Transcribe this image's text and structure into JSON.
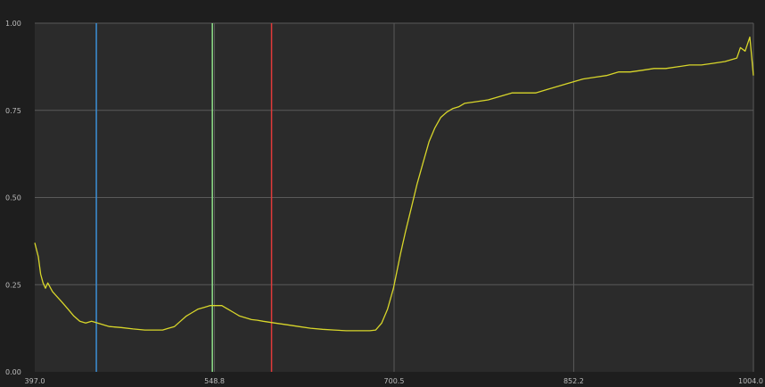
{
  "colors": {
    "background": "#1e1e1e",
    "plot_background": "#2b2b2b",
    "grid": "#5a5a5a",
    "series": "#d8d62a",
    "marker_blue": "#3b8fd6",
    "marker_green": "#8fe08a",
    "marker_red": "#e03a3a"
  },
  "chart_data": {
    "type": "line",
    "title": "",
    "xlabel": "",
    "ylabel": "",
    "xlim": [
      397.0,
      1004.0
    ],
    "ylim": [
      0.0,
      1.0
    ],
    "grid": true,
    "x_ticks": [
      "397.0",
      "548.8",
      "700.5",
      "852.2",
      "1004.0"
    ],
    "x_tick_values": [
      397.0,
      548.8,
      700.5,
      852.2,
      1004.0
    ],
    "y_ticks": [
      "0.00",
      "0.25",
      "0.50",
      "0.75",
      "1.00"
    ],
    "y_tick_values": [
      0.0,
      0.25,
      0.5,
      0.75,
      1.0
    ],
    "markers": [
      {
        "x": 449,
        "color_key": "marker_blue"
      },
      {
        "x": 547,
        "color_key": "marker_green"
      },
      {
        "x": 597,
        "color_key": "marker_red"
      }
    ],
    "series": [
      {
        "x": [
          397,
          400,
          402,
          404,
          406,
          408,
          412,
          416,
          420,
          425,
          430,
          435,
          440,
          445,
          450,
          455,
          460,
          470,
          480,
          490,
          500,
          505,
          510,
          515,
          520,
          525,
          530,
          535,
          540,
          545,
          550,
          555,
          560,
          565,
          570,
          575,
          580,
          585,
          590,
          600,
          610,
          620,
          630,
          640,
          650,
          660,
          670,
          680,
          685,
          690,
          695,
          700,
          703,
          706,
          710,
          715,
          720,
          725,
          730,
          735,
          740,
          745,
          750,
          755,
          760,
          770,
          780,
          790,
          800,
          810,
          820,
          830,
          840,
          850,
          860,
          870,
          880,
          890,
          900,
          910,
          920,
          930,
          940,
          950,
          960,
          970,
          980,
          990,
          993,
          997,
          1001,
          1004
        ],
        "values": [
          0.37,
          0.33,
          0.28,
          0.255,
          0.24,
          0.255,
          0.23,
          0.215,
          0.2,
          0.18,
          0.16,
          0.145,
          0.14,
          0.145,
          0.14,
          0.135,
          0.13,
          0.127,
          0.123,
          0.12,
          0.12,
          0.12,
          0.125,
          0.13,
          0.145,
          0.16,
          0.17,
          0.18,
          0.185,
          0.19,
          0.19,
          0.19,
          0.18,
          0.17,
          0.16,
          0.155,
          0.15,
          0.148,
          0.145,
          0.14,
          0.135,
          0.13,
          0.125,
          0.122,
          0.12,
          0.118,
          0.118,
          0.118,
          0.12,
          0.14,
          0.18,
          0.24,
          0.29,
          0.34,
          0.4,
          0.47,
          0.54,
          0.6,
          0.66,
          0.7,
          0.73,
          0.745,
          0.755,
          0.76,
          0.77,
          0.775,
          0.78,
          0.79,
          0.8,
          0.8,
          0.8,
          0.81,
          0.82,
          0.83,
          0.84,
          0.845,
          0.85,
          0.86,
          0.86,
          0.865,
          0.87,
          0.87,
          0.875,
          0.88,
          0.88,
          0.885,
          0.89,
          0.9,
          0.93,
          0.92,
          0.96,
          0.85
        ]
      }
    ]
  }
}
